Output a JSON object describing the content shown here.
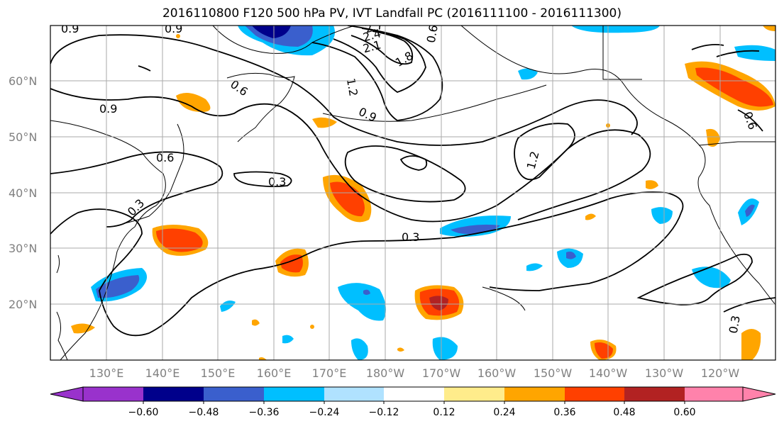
{
  "title": "2016110800 F120 500 hPa PV, IVT Landfall PC (2016111100 - 2016111300)",
  "lat_labels": [
    "60°N",
    "50°N",
    "40°N",
    "30°N",
    "20°N"
  ],
  "lon_labels": [
    "130°E",
    "140°E",
    "150°E",
    "160°E",
    "170°E",
    "180°W",
    "170°W",
    "160°W",
    "150°W",
    "140°W",
    "130°W",
    "120°W"
  ],
  "contour_labels": [
    "0.9",
    "0.6",
    "0.6",
    "0.3",
    "0.9",
    "0.3",
    "0.3",
    "0.6",
    "1.2",
    "0.9",
    "1.2",
    "1.8",
    "2.1",
    "2.4",
    "2.7",
    "0.3",
    "0.6",
    "0.9"
  ],
  "colorbar": {
    "labels": [
      "−0.60",
      "−0.48",
      "−0.36",
      "−0.24",
      "−0.12",
      "0.12",
      "0.24",
      "0.36",
      "0.48",
      "0.60"
    ],
    "colors": [
      "#9932cc",
      "#00008b",
      "#3a5fcd",
      "#00bfff",
      "#b0e2ff",
      "#ffffff",
      "#ffec8b",
      "#ffa500",
      "#ff4000",
      "#b22222",
      "#ff82ab"
    ]
  },
  "colors": {
    "strong_negative": "#00008b",
    "negative": "#3a5fcd",
    "moderate_negative": "#00bfff",
    "weak_negative": "#b0e2ff",
    "weak_positive": "#ffec8b",
    "positive": "#ffa500",
    "strong_positive": "#ff4000",
    "max_positive": "#b22222",
    "contour": "#000000",
    "gridline": "#aaaaaa"
  }
}
